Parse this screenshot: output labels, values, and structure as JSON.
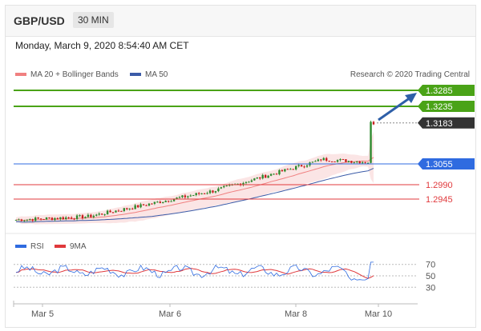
{
  "header": {
    "symbol": "GBP/USD",
    "timeframe": "30 MIN"
  },
  "date_label": "Monday, March 9, 2020 8:54:40 AM CET",
  "legend": {
    "ma20_label": "MA 20 + Bollinger Bands",
    "ma50_label": "MA 50",
    "credit": "Research © 2020 Trading Central"
  },
  "rsi_legend": {
    "rsi_label": "RSI",
    "ma_label": "9MA"
  },
  "colors": {
    "green": "#4aa317",
    "blue": "#2f6be0",
    "red": "#e0393c",
    "candle_up": "#2f8a2f",
    "candle_down": "#c81e1e",
    "dark": "#333333",
    "ma20": "#f08080",
    "ma50": "#3b5ba8"
  },
  "chart_data": [
    {
      "type": "line",
      "x": [
        "Mar 5",
        "Mar 6",
        "Mar 8",
        "Mar 10"
      ],
      "ylim": [
        1.286,
        1.331
      ],
      "levels": [
        {
          "value": 1.3285,
          "label": "1.3285",
          "kind": "resistance"
        },
        {
          "value": 1.3235,
          "label": "1.3235",
          "kind": "resistance"
        },
        {
          "value": 1.3183,
          "label": "1.3183",
          "kind": "current"
        },
        {
          "value": 1.3055,
          "label": "1.3055",
          "kind": "pivot"
        },
        {
          "value": 1.299,
          "label": "1.2990",
          "kind": "support"
        },
        {
          "value": 1.2945,
          "label": "1.2945",
          "kind": "support"
        }
      ],
      "series": [
        {
          "name": "MA 20 + Bollinger Bands"
        },
        {
          "name": "MA 50"
        }
      ]
    },
    {
      "type": "line",
      "ylim": [
        15,
        85
      ],
      "yticks": [
        70,
        50,
        30
      ],
      "series": [
        {
          "name": "RSI"
        },
        {
          "name": "9MA"
        }
      ]
    }
  ]
}
